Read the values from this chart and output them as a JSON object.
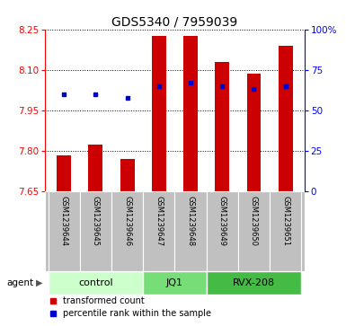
{
  "title": "GDS5340 / 7959039",
  "samples": [
    "GSM1239644",
    "GSM1239645",
    "GSM1239646",
    "GSM1239647",
    "GSM1239648",
    "GSM1239649",
    "GSM1239650",
    "GSM1239651"
  ],
  "bar_values": [
    7.785,
    7.825,
    7.77,
    8.225,
    8.225,
    8.13,
    8.085,
    8.19
  ],
  "percentile_values": [
    60,
    60,
    58,
    65,
    67,
    65,
    63,
    65
  ],
  "ylim_left": [
    7.65,
    8.25
  ],
  "ylim_right": [
    0,
    100
  ],
  "yticks_left": [
    7.65,
    7.8,
    7.95,
    8.1,
    8.25
  ],
  "yticks_right": [
    0,
    25,
    50,
    75,
    100
  ],
  "ytick_right_labels": [
    "0",
    "25",
    "50",
    "75",
    "100%"
  ],
  "bar_color": "#cc0000",
  "dot_color": "#0000cc",
  "baseline": 7.65,
  "groups": [
    {
      "label": "control",
      "indices": [
        0,
        1,
        2
      ],
      "color": "#ccffcc"
    },
    {
      "label": "JQ1",
      "indices": [
        3,
        4
      ],
      "color": "#77dd77"
    },
    {
      "label": "RVX-208",
      "indices": [
        5,
        6,
        7
      ],
      "color": "#44bb44"
    }
  ],
  "agent_label": "agent",
  "legend_bar": "transformed count",
  "legend_dot": "percentile rank within the sample",
  "sample_bg": "#c0c0c0",
  "title_fontsize": 10,
  "axis_fontsize": 7.5,
  "sample_fontsize": 6,
  "group_fontsize": 8,
  "legend_fontsize": 7
}
